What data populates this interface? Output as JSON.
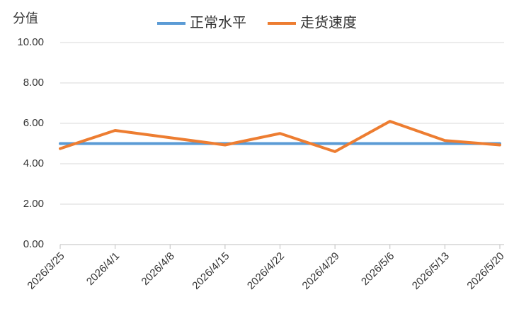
{
  "chart_data": {
    "type": "line",
    "y_label": "分值",
    "categories": [
      "2026/3/25",
      "2026/4/1",
      "2026/4/8",
      "2026/4/15",
      "2026/4/22",
      "2026/4/29",
      "2026/5/6",
      "2026/5/13",
      "2026/5/20"
    ],
    "series": [
      {
        "name": "正常水平",
        "color": "#5b9bd5",
        "values": [
          5,
          5,
          5,
          5,
          5,
          5,
          5,
          5,
          5
        ]
      },
      {
        "name": "走货速度",
        "color": "#ed7d31",
        "values": [
          4.75,
          5.65,
          5.29,
          4.93,
          5.5,
          4.6,
          6.1,
          5.15,
          4.93
        ]
      }
    ],
    "ylim": [
      0,
      10
    ],
    "yticks": [
      {
        "value": 0,
        "label": "0.00"
      },
      {
        "value": 2,
        "label": "2.00"
      },
      {
        "value": 4,
        "label": "4.00"
      },
      {
        "value": 6,
        "label": "6.00"
      },
      {
        "value": 8,
        "label": "8.00"
      },
      {
        "value": 10,
        "label": "10.00"
      }
    ],
    "grid": true,
    "legend": "top"
  }
}
